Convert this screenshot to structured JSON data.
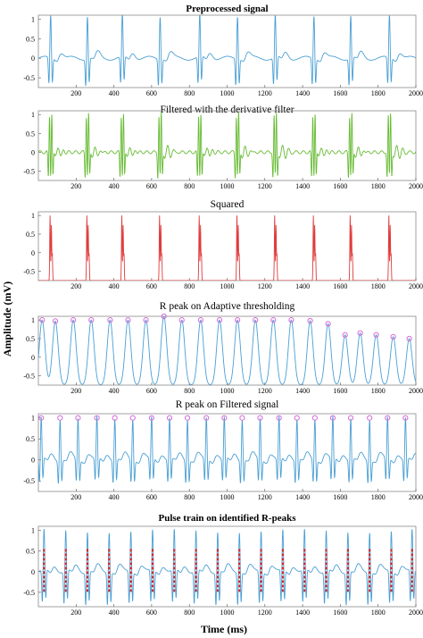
{
  "figure": {
    "ylabel": "Amplitude (mV)",
    "xlabel": "Time (ms)"
  },
  "chart_data": [
    {
      "type": "line",
      "title": "Preprocessed signal",
      "title_bold": true,
      "color": "#4a9fd4",
      "xlim": [
        0,
        2000
      ],
      "ylim": [
        -0.75,
        1.1
      ],
      "xticks": [
        "200",
        "400",
        "600",
        "800",
        "1000",
        "1200",
        "1400",
        "1600",
        "1800",
        "2000"
      ],
      "yticks": [
        "1",
        "0.5",
        "0",
        "-0.5"
      ],
      "waveform": "ecg",
      "beat_times": [
        65,
        260,
        445,
        645,
        855,
        1055,
        1255,
        1460,
        1655,
        1860
      ],
      "peak_amplitudes": [
        1.1,
        1.1,
        1.1,
        1.1,
        1.1,
        1.1,
        1.1,
        1.1,
        1.1,
        1.1
      ],
      "trough_amplitude": -0.7
    },
    {
      "type": "line",
      "title": "Filtered with the derivative filter",
      "title_bold": false,
      "color": "#66bb33",
      "xlim": [
        0,
        2000
      ],
      "ylim": [
        -0.75,
        1.1
      ],
      "xticks": [
        "200",
        "400",
        "600",
        "800",
        "1000",
        "1200",
        "1400",
        "1600",
        "1800",
        "2000"
      ],
      "yticks": [
        "1",
        "0.5",
        "0",
        "-0.5"
      ],
      "waveform": "derivative",
      "beat_times": [
        65,
        260,
        445,
        645,
        855,
        1055,
        1255,
        1460,
        1655,
        1860
      ],
      "peak_amplitudes": [
        1.05,
        1.05,
        1.05,
        1.05,
        1.05,
        1.05,
        1.05,
        1.05,
        1.05,
        1.05
      ],
      "trough_amplitude": -0.7
    },
    {
      "type": "line",
      "title": "Squared",
      "title_bold": false,
      "color": "#e03c3c",
      "xlim": [
        0,
        2000
      ],
      "ylim": [
        -0.75,
        1.1
      ],
      "xticks": [
        "200",
        "400",
        "600",
        "800",
        "1000",
        "1200",
        "1400",
        "1600",
        "1800",
        "2000"
      ],
      "yticks": [
        "1",
        "0.5",
        "0",
        "-0.5"
      ],
      "waveform": "squared",
      "baseline": -0.75,
      "beat_times": [
        65,
        260,
        445,
        645,
        855,
        1055,
        1255,
        1460,
        1655,
        1860
      ],
      "peak_amplitudes": [
        1.0,
        1.0,
        1.0,
        1.0,
        1.0,
        1.0,
        1.0,
        1.0,
        1.0,
        1.0
      ]
    },
    {
      "type": "line",
      "title": "R peak on Adaptive thresholding",
      "title_bold": false,
      "color": "#4a9fd4",
      "marker_color": "#d66ad6",
      "xlim": [
        0,
        2000
      ],
      "ylim": [
        -0.75,
        1.1
      ],
      "xticks": [
        "200",
        "400",
        "600",
        "800",
        "1000",
        "1200",
        "1400",
        "1600",
        "1800",
        "2000"
      ],
      "yticks": [
        "1",
        "0.5",
        "0",
        "-0.5"
      ],
      "waveform": "envelope",
      "baseline": -0.75,
      "beat_times": [
        20,
        90,
        185,
        280,
        380,
        475,
        570,
        665,
        760,
        860,
        960,
        1055,
        1150,
        1245,
        1340,
        1440,
        1535,
        1625,
        1705,
        1790,
        1880,
        1965
      ],
      "peak_amplitudes": [
        1.0,
        0.97,
        1.0,
        1.0,
        1.0,
        1.0,
        1.0,
        1.1,
        1.0,
        1.0,
        1.0,
        1.0,
        1.0,
        1.0,
        1.0,
        0.98,
        0.9,
        0.6,
        0.65,
        0.6,
        0.55,
        0.5
      ],
      "markers": [
        {
          "x": 20,
          "y": 1.0
        },
        {
          "x": 90,
          "y": 0.97
        },
        {
          "x": 185,
          "y": 1.0
        },
        {
          "x": 280,
          "y": 1.0
        },
        {
          "x": 380,
          "y": 1.0
        },
        {
          "x": 475,
          "y": 1.0
        },
        {
          "x": 570,
          "y": 1.0
        },
        {
          "x": 665,
          "y": 1.1
        },
        {
          "x": 760,
          "y": 1.0
        },
        {
          "x": 860,
          "y": 1.0
        },
        {
          "x": 960,
          "y": 1.0
        },
        {
          "x": 1055,
          "y": 1.0
        },
        {
          "x": 1150,
          "y": 1.0
        },
        {
          "x": 1245,
          "y": 1.0
        },
        {
          "x": 1340,
          "y": 1.0
        },
        {
          "x": 1440,
          "y": 0.98
        },
        {
          "x": 1535,
          "y": 0.9
        },
        {
          "x": 1625,
          "y": 0.6
        },
        {
          "x": 1705,
          "y": 0.65
        },
        {
          "x": 1790,
          "y": 0.6
        },
        {
          "x": 1880,
          "y": 0.55
        },
        {
          "x": 1965,
          "y": 0.5
        }
      ]
    },
    {
      "type": "line",
      "title": "R peak on Filtered signal",
      "title_bold": false,
      "color": "#4a9fd4",
      "marker_color": "#d66ad6",
      "xlim": [
        0,
        2000
      ],
      "ylim": [
        -0.75,
        1.1
      ],
      "xticks": [
        "200",
        "400",
        "600",
        "800",
        "1000",
        "1200",
        "1400",
        "1600",
        "1800",
        "2000"
      ],
      "yticks": [
        "1",
        "0.5",
        "0",
        "-0.5"
      ],
      "waveform": "ecg",
      "beat_times": [
        15,
        115,
        210,
        310,
        405,
        500,
        600,
        695,
        790,
        890,
        985,
        1080,
        1175,
        1275,
        1370,
        1465,
        1560,
        1655,
        1755,
        1850,
        1945
      ],
      "peak_amplitudes": [
        1.0,
        1.0,
        1.0,
        1.0,
        1.0,
        1.0,
        1.0,
        1.0,
        1.0,
        1.0,
        1.0,
        1.0,
        1.0,
        1.0,
        1.0,
        1.0,
        1.0,
        1.0,
        1.0,
        1.0,
        1.0
      ],
      "trough_amplitude": -0.55,
      "markers": [
        {
          "x": 15,
          "y": 1.0
        },
        {
          "x": 115,
          "y": 1.0
        },
        {
          "x": 210,
          "y": 1.0
        },
        {
          "x": 310,
          "y": 1.0
        },
        {
          "x": 405,
          "y": 1.0
        },
        {
          "x": 500,
          "y": 1.0
        },
        {
          "x": 600,
          "y": 1.0
        },
        {
          "x": 695,
          "y": 1.0
        },
        {
          "x": 790,
          "y": 1.0
        },
        {
          "x": 890,
          "y": 1.0
        },
        {
          "x": 985,
          "y": 1.0
        },
        {
          "x": 1080,
          "y": 1.0
        },
        {
          "x": 1175,
          "y": 1.0
        },
        {
          "x": 1275,
          "y": 1.0
        },
        {
          "x": 1370,
          "y": 1.0
        },
        {
          "x": 1465,
          "y": 1.0
        },
        {
          "x": 1560,
          "y": 1.0
        },
        {
          "x": 1655,
          "y": 1.0
        },
        {
          "x": 1755,
          "y": 1.0
        },
        {
          "x": 1850,
          "y": 1.0
        },
        {
          "x": 1945,
          "y": 1.0
        }
      ]
    },
    {
      "type": "line",
      "title": "Pulse train on identified R-peaks",
      "title_bold": true,
      "color": "#4a9fd4",
      "pulse_color": "#e02020",
      "xlim": [
        0,
        2000
      ],
      "ylim": [
        -0.85,
        1.1
      ],
      "xticks": [
        "200",
        "400",
        "600",
        "800",
        "1000",
        "1200",
        "1400",
        "1600",
        "1800",
        "2000"
      ],
      "yticks": [
        "1",
        "0.5",
        "0",
        "-0.5"
      ],
      "waveform": "ecg",
      "beat_times": [
        30,
        145,
        260,
        375,
        490,
        605,
        720,
        835,
        950,
        1065,
        1180,
        1295,
        1410,
        1525,
        1640,
        1755,
        1870,
        1980
      ],
      "peak_amplitudes": [
        1.0,
        1.0,
        1.0,
        1.0,
        1.0,
        1.0,
        1.0,
        1.0,
        1.0,
        1.0,
        1.0,
        1.0,
        1.0,
        1.0,
        1.0,
        1.0,
        1.0,
        1.0
      ],
      "trough_amplitude": -0.8,
      "pulse_train": {
        "high": 0.55,
        "low": -0.5
      }
    }
  ]
}
